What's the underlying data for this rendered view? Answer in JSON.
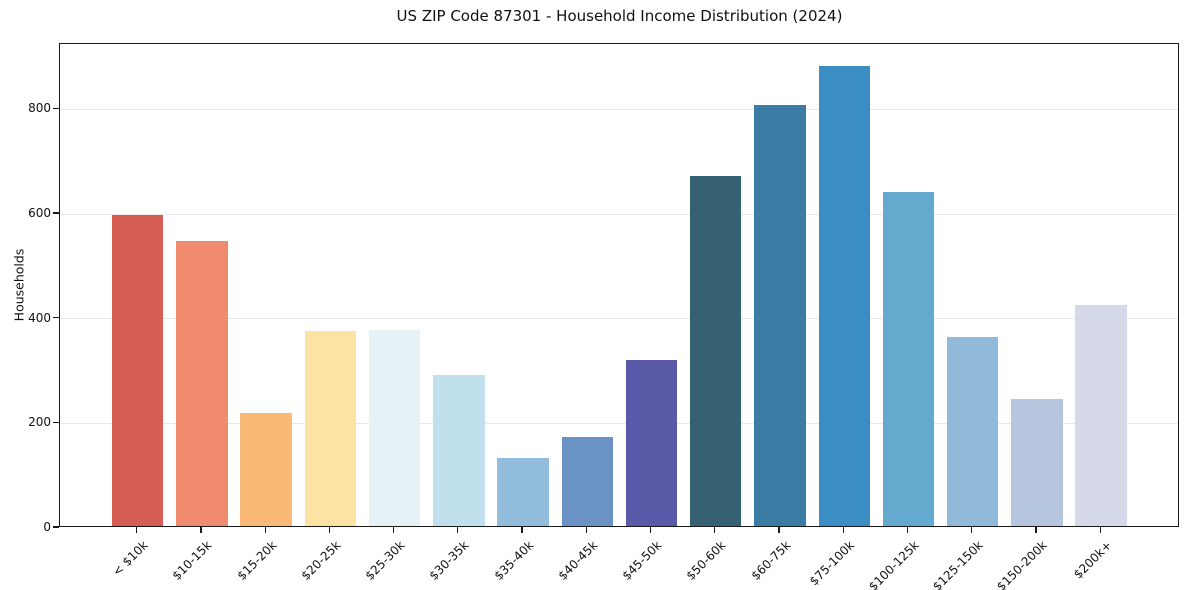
{
  "chart_data": {
    "type": "bar",
    "title": "US ZIP Code 87301 - Household Income Distribution (2024)",
    "xlabel": "",
    "ylabel": "Households",
    "categories": [
      "< $10k",
      "$10-15k",
      "$15-20k",
      "$20-25k",
      "$25-30k",
      "$30-35k",
      "$35-40k",
      "$40-45k",
      "$45-50k",
      "$50-60k",
      "$60-75k",
      "$75-100k",
      "$100-125k",
      "$125-150k",
      "$150-200k",
      "$200k+"
    ],
    "values": [
      595,
      545,
      216,
      372,
      374,
      288,
      130,
      170,
      318,
      668,
      805,
      879,
      638,
      362,
      242,
      423
    ],
    "colors": [
      "#d65d53",
      "#f08b6e",
      "#fbb977",
      "#fce3a3",
      "#e7f2f7",
      "#c0e0ee",
      "#92bcdb",
      "#6b92c4",
      "#5a5aa8",
      "#366173",
      "#3b7ca4",
      "#3a8ec4",
      "#64a9ce",
      "#91b9da",
      "#b5c6de",
      "#d6d9e8"
    ],
    "yticks": [
      0,
      200,
      400,
      600,
      800
    ],
    "ylim": [
      0,
      925
    ],
    "grid": "horizontal",
    "grid_color": "#e9e9e9",
    "legend": "none",
    "background_color": "#ffffff",
    "spine_color": "#1a1a1a"
  }
}
